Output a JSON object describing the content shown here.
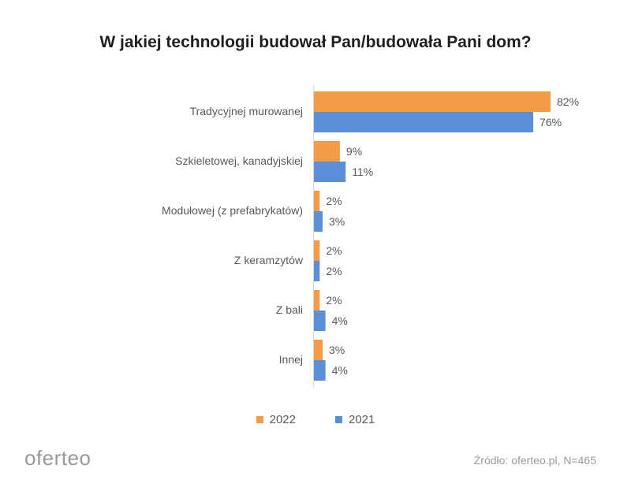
{
  "chart_data": {
    "type": "bar",
    "orientation": "horizontal",
    "title": "W jakiej technologii budował Pan/budowała Pani dom?",
    "categories": [
      "Tradycyjnej murowanej",
      "Szkieletowej, kanadyjskiej",
      "Modułowej (z prefabrykatów)",
      "Z keramzytów",
      "Z bali",
      "Innej"
    ],
    "series": [
      {
        "name": "2022",
        "color": "#F39C45",
        "values": [
          82,
          9,
          2,
          2,
          2,
          3
        ],
        "labels": [
          "82%",
          "9%",
          "2%",
          "2%",
          "2%",
          "3%"
        ]
      },
      {
        "name": "2021",
        "color": "#5B90D8",
        "values": [
          76,
          11,
          3,
          2,
          4,
          4
        ],
        "labels": [
          "76%",
          "11%",
          "3%",
          "2%",
          "4%",
          "4%"
        ]
      }
    ],
    "xlim": [
      0,
      82
    ],
    "grid": false,
    "legend_position": "bottom"
  },
  "footer": {
    "brand": "oferteo",
    "source": "Źródło: oferteo.pl, N=465"
  }
}
